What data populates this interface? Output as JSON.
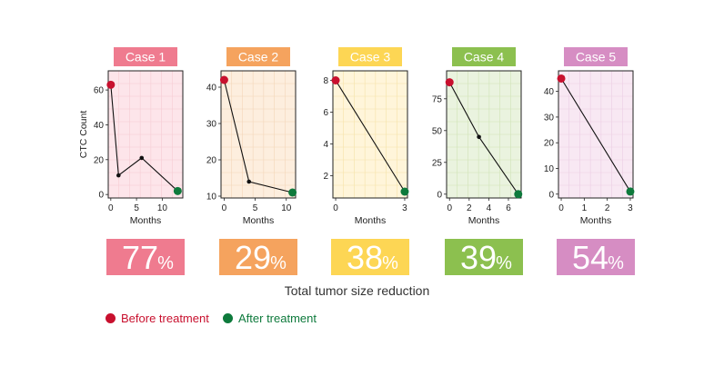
{
  "colors": {
    "before": "#c8102e",
    "after": "#0e7a3c",
    "line": "#111111"
  },
  "caption": "Total tumor size reduction",
  "legend": {
    "before": "Before treatment",
    "after": "After treatment"
  },
  "chart_data": [
    {
      "type": "line",
      "title": "Case 1",
      "xlabel": "Months",
      "ylabel": "CTC Count",
      "x": [
        0,
        1.5,
        6,
        13
      ],
      "values": [
        63,
        11,
        21,
        2
      ],
      "xticks": [
        0,
        5,
        10
      ],
      "yticks": [
        0,
        20,
        40,
        60
      ],
      "xlim": [
        -0.5,
        14
      ],
      "ylim": [
        -2,
        71
      ],
      "reduction": "77",
      "unit": "%",
      "accent": "#ef7b8f",
      "panel": "#fde5ea",
      "grid": "#f6cbd3"
    },
    {
      "type": "line",
      "title": "Case 2",
      "xlabel": "Months",
      "ylabel": "",
      "x": [
        0,
        4,
        11
      ],
      "values": [
        42,
        14,
        11
      ],
      "xticks": [
        0,
        5,
        10
      ],
      "yticks": [
        10,
        20,
        30,
        40
      ],
      "xlim": [
        -0.5,
        11.5
      ],
      "ylim": [
        9.5,
        44.5
      ],
      "reduction": "29",
      "unit": "%",
      "accent": "#f5a35e",
      "panel": "#fdeede",
      "grid": "#f3d5b8"
    },
    {
      "type": "line",
      "title": "Case 3",
      "xlabel": "Months",
      "ylabel": "",
      "x": [
        0,
        3
      ],
      "values": [
        8,
        1
      ],
      "xticks": [
        0,
        3
      ],
      "yticks": [
        2,
        4,
        6,
        8
      ],
      "xlim": [
        -0.12,
        3.12
      ],
      "ylim": [
        0.6,
        8.6
      ],
      "reduction": "38",
      "unit": "%",
      "accent": "#fdd654",
      "panel": "#fff5da",
      "grid": "#f5e2a8"
    },
    {
      "type": "line",
      "title": "Case 4",
      "xlabel": "Months",
      "ylabel": "",
      "x": [
        0,
        3,
        7
      ],
      "values": [
        88,
        45,
        0
      ],
      "xticks": [
        0,
        2,
        4,
        6
      ],
      "yticks": [
        0,
        25,
        50,
        75
      ],
      "xlim": [
        -0.3,
        7.3
      ],
      "ylim": [
        -3,
        97
      ],
      "reduction": "39",
      "unit": "%",
      "accent": "#8cc04f",
      "panel": "#eaf3df",
      "grid": "#cfe3b6"
    },
    {
      "type": "line",
      "title": "Case 5",
      "xlabel": "Months",
      "ylabel": "",
      "x": [
        0,
        3
      ],
      "values": [
        45,
        1
      ],
      "xticks": [
        0,
        1,
        2,
        3
      ],
      "yticks": [
        0,
        10,
        20,
        30,
        40
      ],
      "xlim": [
        -0.12,
        3.12
      ],
      "ylim": [
        -1.5,
        48
      ],
      "reduction": "54",
      "unit": "%",
      "accent": "#d68dc3",
      "panel": "#f8e8f3",
      "grid": "#ebcde3"
    }
  ]
}
